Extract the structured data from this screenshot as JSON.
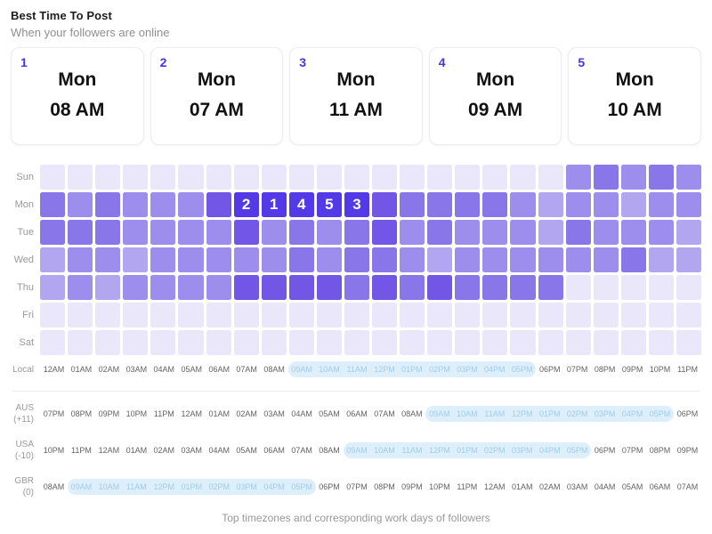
{
  "header": {
    "title": "Best Time To Post",
    "subtitle": "When your followers are online"
  },
  "cards": [
    {
      "rank": "1",
      "day": "Mon",
      "time": "08 AM"
    },
    {
      "rank": "2",
      "day": "Mon",
      "time": "07 AM"
    },
    {
      "rank": "3",
      "day": "Mon",
      "time": "11 AM"
    },
    {
      "rank": "4",
      "day": "Mon",
      "time": "09 AM"
    },
    {
      "rank": "5",
      "day": "Mon",
      "time": "10 AM"
    }
  ],
  "chart_data": {
    "type": "heatmap",
    "title": "Best Time To Post",
    "rows": [
      "Sun",
      "Mon",
      "Tue",
      "Wed",
      "Thu",
      "Fri",
      "Sat"
    ],
    "columns": [
      "12AM",
      "01AM",
      "02AM",
      "03AM",
      "04AM",
      "05AM",
      "06AM",
      "07AM",
      "08AM",
      "09AM",
      "10AM",
      "11AM",
      "12PM",
      "01PM",
      "02PM",
      "03PM",
      "04PM",
      "05PM",
      "06PM",
      "07PM",
      "08PM",
      "09PM",
      "10PM",
      "11PM"
    ],
    "value_scale": "0 = lowest follower activity, 6 = ranked best-time cell",
    "values": [
      [
        0,
        0,
        0,
        0,
        0,
        0,
        0,
        0,
        0,
        0,
        0,
        0,
        0,
        0,
        0,
        0,
        0,
        0,
        0,
        3,
        4,
        3,
        4,
        3
      ],
      [
        4,
        3,
        4,
        3,
        3,
        3,
        5,
        6,
        6,
        6,
        6,
        6,
        5,
        4,
        4,
        4,
        4,
        3,
        2,
        3,
        3,
        2,
        3,
        3
      ],
      [
        4,
        4,
        4,
        3,
        3,
        3,
        3,
        5,
        3,
        4,
        3,
        4,
        5,
        3,
        4,
        3,
        3,
        3,
        2,
        4,
        3,
        3,
        3,
        2
      ],
      [
        2,
        3,
        3,
        2,
        3,
        3,
        3,
        3,
        3,
        4,
        3,
        4,
        4,
        3,
        2,
        3,
        3,
        3,
        3,
        3,
        3,
        4,
        2,
        2
      ],
      [
        2,
        3,
        2,
        3,
        3,
        3,
        3,
        5,
        5,
        5,
        5,
        4,
        5,
        4,
        5,
        4,
        4,
        4,
        4,
        0,
        0,
        0,
        0,
        0
      ],
      [
        0,
        0,
        0,
        0,
        0,
        0,
        0,
        0,
        0,
        0,
        0,
        0,
        0,
        0,
        0,
        0,
        0,
        0,
        0,
        0,
        0,
        0,
        0,
        0
      ],
      [
        0,
        0,
        0,
        0,
        0,
        0,
        0,
        0,
        0,
        0,
        0,
        0,
        0,
        0,
        0,
        0,
        0,
        0,
        0,
        0,
        0,
        0,
        0,
        0
      ]
    ],
    "annotations": [
      {
        "row": "Mon",
        "col": "07AM",
        "label": "2"
      },
      {
        "row": "Mon",
        "col": "08AM",
        "label": "1"
      },
      {
        "row": "Mon",
        "col": "09AM",
        "label": "4"
      },
      {
        "row": "Mon",
        "col": "10AM",
        "label": "5"
      },
      {
        "row": "Mon",
        "col": "11AM",
        "label": "3"
      }
    ],
    "palette": [
      "#eae7fb",
      "#ded9f8",
      "#b2a6f1",
      "#9d8ded",
      "#8977ea",
      "#7257e6",
      "#5439e8"
    ],
    "legend_position": "none",
    "grid": false
  },
  "local_row": {
    "label": "Local",
    "hours": [
      "12AM",
      "01AM",
      "02AM",
      "03AM",
      "04AM",
      "05AM",
      "06AM",
      "07AM",
      "08AM",
      "09AM",
      "10AM",
      "11AM",
      "12PM",
      "01PM",
      "02PM",
      "03PM",
      "04PM",
      "05PM",
      "06PM",
      "07PM",
      "08PM",
      "09PM",
      "10PM",
      "11PM"
    ],
    "highlight": {
      "start": 9,
      "end": 17
    }
  },
  "timezones": [
    {
      "name": "AUS",
      "offset": "(+11)",
      "hours": [
        "07PM",
        "08PM",
        "09PM",
        "10PM",
        "11PM",
        "12AM",
        "01AM",
        "02AM",
        "03AM",
        "04AM",
        "05AM",
        "06AM",
        "07AM",
        "08AM",
        "09AM",
        "10AM",
        "11AM",
        "12PM",
        "01PM",
        "02PM",
        "03PM",
        "04PM",
        "05PM",
        "06PM"
      ],
      "highlight": {
        "start": 14,
        "end": 22
      }
    },
    {
      "name": "USA",
      "offset": "(-10)",
      "hours": [
        "10PM",
        "11PM",
        "12AM",
        "01AM",
        "02AM",
        "03AM",
        "04AM",
        "05AM",
        "06AM",
        "07AM",
        "08AM",
        "09AM",
        "10AM",
        "11AM",
        "12PM",
        "01PM",
        "02PM",
        "03PM",
        "04PM",
        "05PM",
        "06PM",
        "07PM",
        "08PM",
        "09PM"
      ],
      "highlight": {
        "start": 11,
        "end": 19
      }
    },
    {
      "name": "GBR",
      "offset": "(0)",
      "hours": [
        "08AM",
        "09AM",
        "10AM",
        "11AM",
        "12PM",
        "01PM",
        "02PM",
        "03PM",
        "04PM",
        "05PM",
        "06PM",
        "07PM",
        "08PM",
        "09PM",
        "10PM",
        "11PM",
        "12AM",
        "01AM",
        "02AM",
        "03AM",
        "04AM",
        "05AM",
        "06AM",
        "07AM"
      ],
      "highlight": {
        "start": 1,
        "end": 9
      }
    }
  ],
  "footer": {
    "caption": "Top timezones and corresponding work days of followers"
  },
  "colors": {
    "accent_indigo": "#4433e8",
    "best_cell": "#5439e8",
    "highlight_bg": "#ddeffb",
    "highlight_text": "#a3cbe9",
    "label_gray": "#98989d",
    "hour_text": "#636366",
    "card_border": "#ececf1"
  }
}
